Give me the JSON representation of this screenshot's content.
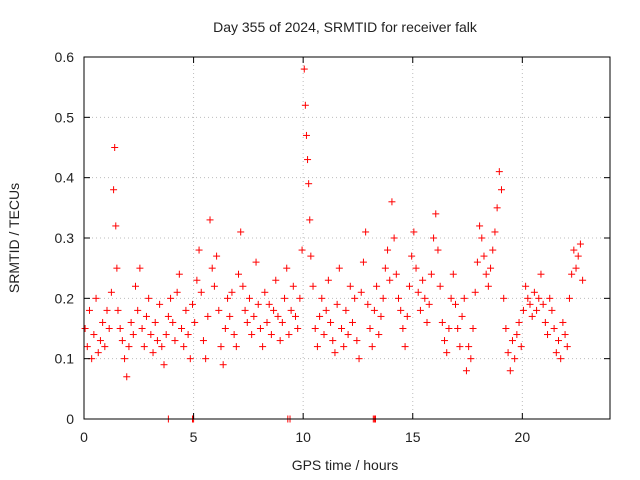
{
  "chart_data": {
    "type": "scatter",
    "title": "Day 355 of 2024, SRMTID for receiver falk",
    "xlabel": "GPS time / hours",
    "ylabel": "SRMTID / TECUs",
    "xlim": [
      0,
      24
    ],
    "ylim": [
      0,
      0.6
    ],
    "x_ticks": [
      0,
      5,
      10,
      15,
      20
    ],
    "x_tick_labels": [
      "0",
      "5",
      "10",
      "15",
      "20"
    ],
    "y_ticks": [
      0,
      0.1,
      0.2,
      0.3,
      0.4,
      0.5,
      0.6
    ],
    "y_tick_labels": [
      "0",
      "0.1",
      "0.2",
      "0.3",
      "0.4",
      "0.5",
      "0.6"
    ],
    "grid": true,
    "marker": "+",
    "color": "#ff0000",
    "series": [
      {
        "name": "SRMTID",
        "x": [
          0.05,
          0.15,
          0.25,
          0.35,
          0.45,
          0.55,
          0.65,
          0.75,
          0.85,
          0.95,
          1.05,
          1.15,
          1.25,
          1.35,
          1.4,
          1.45,
          1.5,
          1.55,
          1.65,
          1.75,
          1.85,
          1.95,
          2.05,
          2.15,
          2.25,
          2.35,
          2.45,
          2.55,
          2.65,
          2.75,
          2.85,
          2.95,
          3.05,
          3.15,
          3.25,
          3.35,
          3.45,
          3.55,
          3.65,
          3.75,
          3.85,
          3.95,
          4.05,
          4.15,
          4.25,
          4.35,
          4.45,
          4.55,
          4.65,
          4.75,
          4.85,
          4.95,
          5.05,
          5.15,
          5.25,
          5.35,
          5.45,
          5.55,
          5.65,
          5.75,
          5.85,
          5.95,
          6.05,
          6.15,
          6.25,
          6.35,
          6.45,
          6.55,
          6.65,
          6.75,
          6.85,
          6.95,
          7.05,
          7.15,
          7.25,
          7.35,
          7.45,
          7.55,
          7.65,
          7.75,
          7.85,
          7.95,
          8.05,
          8.15,
          8.25,
          8.35,
          8.45,
          8.55,
          8.65,
          8.75,
          8.85,
          8.95,
          9.05,
          9.15,
          9.25,
          9.35,
          9.45,
          9.55,
          9.65,
          9.75,
          9.85,
          9.95,
          10.05,
          10.1,
          10.15,
          10.2,
          10.25,
          10.3,
          10.35,
          10.45,
          10.55,
          10.65,
          10.75,
          10.85,
          10.95,
          11.05,
          11.15,
          11.25,
          11.35,
          11.45,
          11.55,
          11.65,
          11.75,
          11.85,
          11.95,
          12.05,
          12.15,
          12.25,
          12.35,
          12.45,
          12.55,
          12.65,
          12.75,
          12.85,
          12.95,
          13.05,
          13.15,
          13.25,
          13.35,
          13.45,
          13.55,
          13.65,
          13.75,
          13.85,
          13.95,
          14.05,
          14.15,
          14.25,
          14.35,
          14.45,
          14.55,
          14.65,
          14.75,
          14.85,
          14.95,
          15.05,
          15.15,
          15.25,
          15.35,
          15.45,
          15.55,
          15.65,
          15.75,
          15.85,
          15.95,
          16.05,
          16.15,
          16.25,
          16.35,
          16.45,
          16.55,
          16.65,
          16.75,
          16.85,
          16.95,
          17.05,
          17.15,
          17.25,
          17.35,
          17.45,
          17.55,
          17.65,
          17.75,
          17.85,
          17.95,
          18.05,
          18.15,
          18.25,
          18.35,
          18.45,
          18.55,
          18.65,
          18.75,
          18.85,
          18.95,
          19.05,
          19.15,
          19.25,
          19.35,
          19.45,
          19.55,
          19.65,
          19.75,
          19.85,
          19.95,
          20.05,
          20.15,
          20.25,
          20.35,
          20.45,
          20.55,
          20.65,
          20.75,
          20.85,
          20.95,
          21.05,
          21.15,
          21.25,
          21.35,
          21.45,
          21.55,
          21.65,
          21.75,
          21.85,
          21.95,
          22.05,
          22.15,
          22.25,
          22.35,
          22.45,
          22.55,
          22.65,
          22.75,
          3.85,
          4.95,
          5.0,
          9.3,
          9.4,
          13.2,
          13.25,
          13.3
        ],
        "y": [
          0.15,
          0.12,
          0.18,
          0.1,
          0.14,
          0.2,
          0.11,
          0.13,
          0.16,
          0.12,
          0.18,
          0.15,
          0.21,
          0.38,
          0.45,
          0.32,
          0.25,
          0.18,
          0.15,
          0.13,
          0.1,
          0.07,
          0.12,
          0.16,
          0.14,
          0.22,
          0.18,
          0.25,
          0.15,
          0.12,
          0.17,
          0.2,
          0.14,
          0.11,
          0.16,
          0.13,
          0.19,
          0.12,
          0.09,
          0.14,
          0.17,
          0.2,
          0.16,
          0.13,
          0.21,
          0.24,
          0.15,
          0.12,
          0.18,
          0.14,
          0.1,
          0.19,
          0.16,
          0.23,
          0.28,
          0.21,
          0.13,
          0.1,
          0.17,
          0.33,
          0.25,
          0.22,
          0.27,
          0.18,
          0.12,
          0.09,
          0.15,
          0.2,
          0.17,
          0.21,
          0.14,
          0.12,
          0.24,
          0.31,
          0.22,
          0.18,
          0.16,
          0.2,
          0.14,
          0.17,
          0.26,
          0.19,
          0.15,
          0.12,
          0.21,
          0.16,
          0.19,
          0.14,
          0.18,
          0.23,
          0.17,
          0.13,
          0.16,
          0.2,
          0.25,
          0.14,
          0.18,
          0.22,
          0.17,
          0.15,
          0.2,
          0.28,
          0.58,
          0.52,
          0.47,
          0.43,
          0.39,
          0.33,
          0.27,
          0.22,
          0.15,
          0.12,
          0.17,
          0.2,
          0.14,
          0.18,
          0.23,
          0.16,
          0.13,
          0.11,
          0.19,
          0.25,
          0.15,
          0.12,
          0.18,
          0.14,
          0.22,
          0.16,
          0.2,
          0.13,
          0.1,
          0.21,
          0.26,
          0.31,
          0.19,
          0.15,
          0.12,
          0.18,
          0.22,
          0.14,
          0.17,
          0.2,
          0.25,
          0.28,
          0.23,
          0.36,
          0.3,
          0.24,
          0.2,
          0.18,
          0.15,
          0.12,
          0.17,
          0.22,
          0.27,
          0.31,
          0.25,
          0.21,
          0.18,
          0.23,
          0.2,
          0.16,
          0.19,
          0.24,
          0.3,
          0.34,
          0.28,
          0.22,
          0.16,
          0.13,
          0.11,
          0.15,
          0.2,
          0.24,
          0.19,
          0.15,
          0.12,
          0.17,
          0.2,
          0.08,
          0.12,
          0.1,
          0.15,
          0.21,
          0.26,
          0.32,
          0.3,
          0.27,
          0.24,
          0.22,
          0.25,
          0.28,
          0.31,
          0.35,
          0.41,
          0.38,
          0.2,
          0.15,
          0.11,
          0.08,
          0.13,
          0.1,
          0.14,
          0.16,
          0.12,
          0.18,
          0.22,
          0.2,
          0.19,
          0.17,
          0.21,
          0.18,
          0.2,
          0.24,
          0.19,
          0.16,
          0.14,
          0.2,
          0.18,
          0.15,
          0.11,
          0.13,
          0.1,
          0.16,
          0.14,
          0.12,
          0.2,
          0.24,
          0.28,
          0.25,
          0.27,
          0.29,
          0.23,
          0.0,
          0.0,
          0.0,
          0.0,
          0.0,
          0.0,
          0.0,
          0.0
        ]
      }
    ]
  }
}
